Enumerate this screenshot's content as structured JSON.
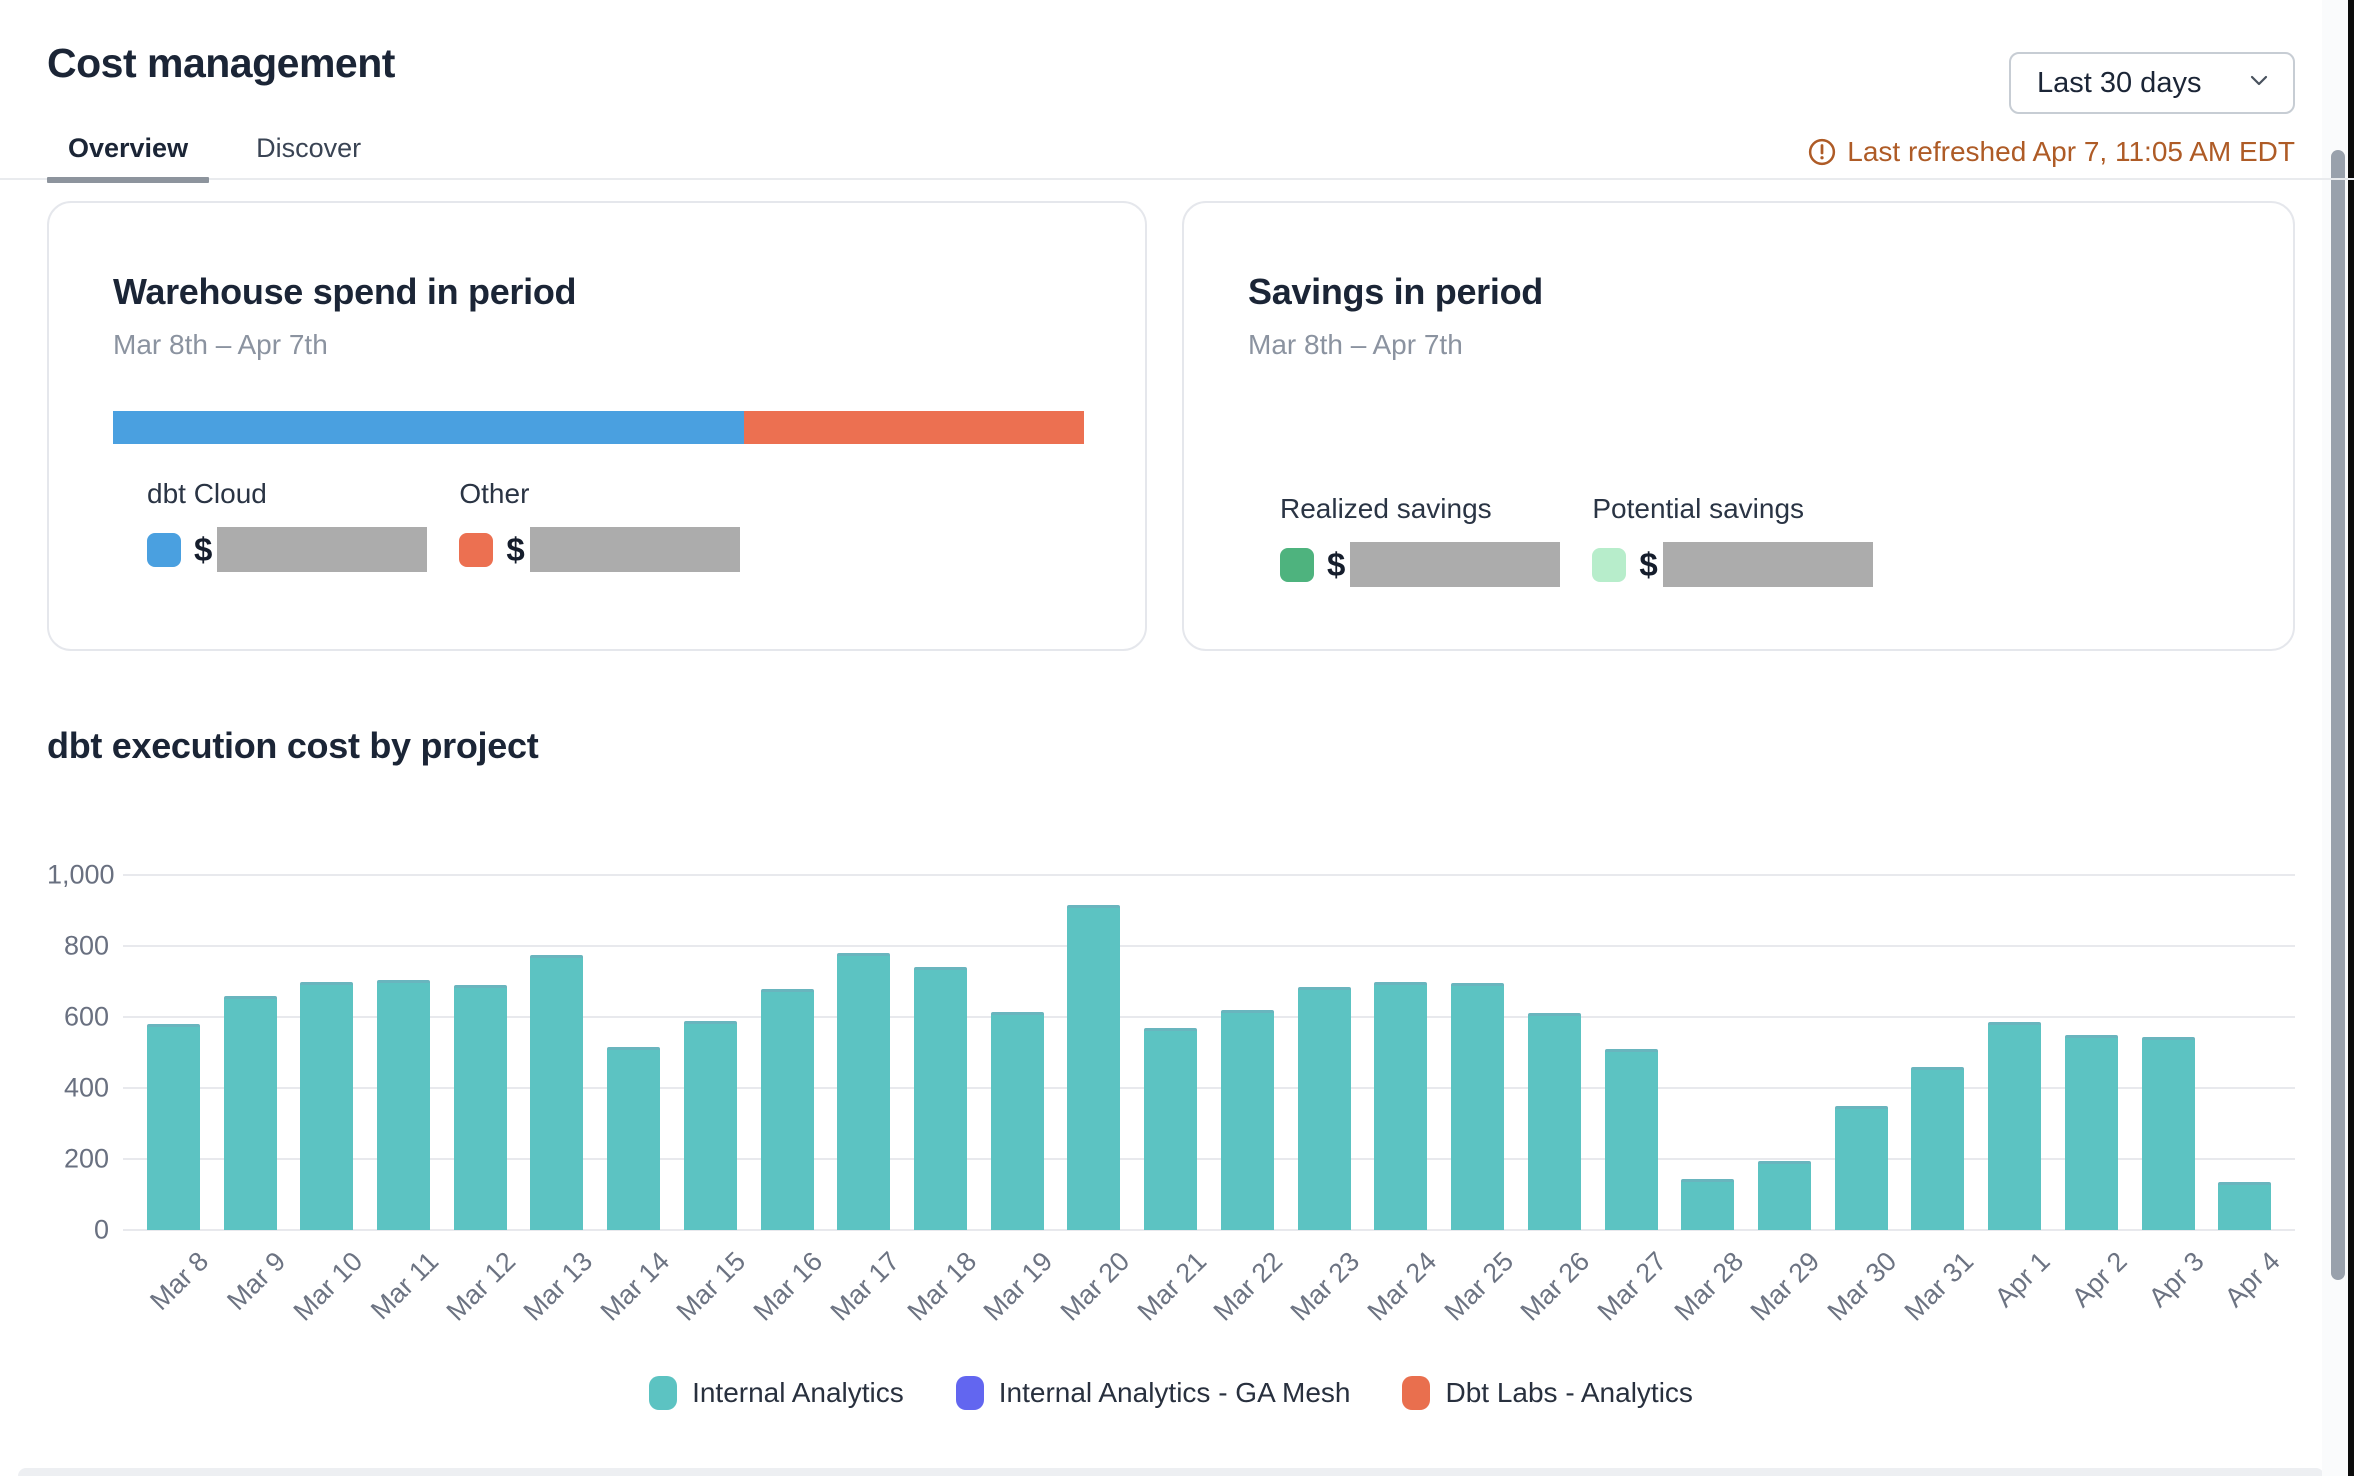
{
  "header": {
    "title": "Cost management",
    "date_range_label": "Last 30 days",
    "last_refreshed_text": "Last refreshed Apr 7, 11:05 AM EDT",
    "last_refreshed_color": "#AE5B26"
  },
  "tabs": [
    {
      "label": "Overview",
      "active": true
    },
    {
      "label": "Discover",
      "active": false
    }
  ],
  "warehouse_card": {
    "title": "Warehouse spend in period",
    "subtitle": "Mar 8th – Apr 7th",
    "currency_symbol": "$",
    "values_redacted": true,
    "bar_segments": [
      {
        "label": "dbt Cloud",
        "color": "#4AA0E0",
        "percent": 65
      },
      {
        "label": "Other",
        "color": "#EC7051",
        "percent": 35
      }
    ]
  },
  "savings_card": {
    "title": "Savings in period",
    "subtitle": "Mar 8th – Apr 7th",
    "currency_symbol": "$",
    "values_redacted": true,
    "legend": [
      {
        "label": "Realized savings",
        "color": "#4EB37E"
      },
      {
        "label": "Potential savings",
        "color": "#B7EDCB"
      }
    ]
  },
  "chart_data": {
    "type": "bar",
    "title": "dbt execution cost by project",
    "xlabel": "",
    "ylabel": "",
    "ylim": [
      0,
      1000
    ],
    "grid": true,
    "legend_position": "bottom",
    "bar_color": "#5CC3C2",
    "yticks": [
      {
        "label": "0",
        "value": 0
      },
      {
        "label": "200",
        "value": 200
      },
      {
        "label": "400",
        "value": 400
      },
      {
        "label": "600",
        "value": 600
      },
      {
        "label": "800",
        "value": 800
      },
      {
        "label": "1,000",
        "value": 1000
      }
    ],
    "categories": [
      "Mar 8",
      "Mar 9",
      "Mar 10",
      "Mar 11",
      "Mar 12",
      "Mar 13",
      "Mar 14",
      "Mar 15",
      "Mar 16",
      "Mar 17",
      "Mar 18",
      "Mar 19",
      "Mar 20",
      "Mar 21",
      "Mar 22",
      "Mar 23",
      "Mar 24",
      "Mar 25",
      "Mar 26",
      "Mar 27",
      "Mar 28",
      "Mar 29",
      "Mar 30",
      "Mar 31",
      "Apr 1",
      "Apr 2",
      "Apr 3",
      "Apr 4"
    ],
    "values": [
      580,
      660,
      700,
      705,
      690,
      775,
      515,
      590,
      680,
      780,
      740,
      615,
      915,
      570,
      620,
      685,
      700,
      695,
      610,
      510,
      145,
      195,
      350,
      460,
      585,
      550,
      545,
      135
    ],
    "legend": [
      {
        "name": "Internal Analytics",
        "color": "#5CC3C2"
      },
      {
        "name": "Internal Analytics - GA Mesh",
        "color": "#6266F0"
      },
      {
        "name": "Dbt Labs - Analytics",
        "color": "#E96F4E"
      }
    ]
  }
}
